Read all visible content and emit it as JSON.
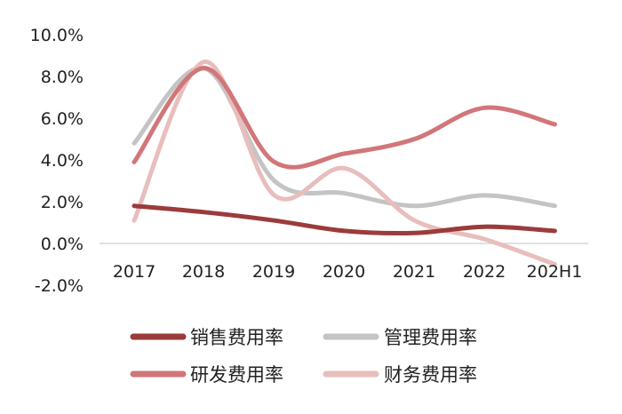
{
  "chart_data": {
    "type": "line",
    "title": "",
    "xlabel": "",
    "ylabel": "",
    "categories": [
      "2017",
      "2018",
      "2019",
      "2020",
      "2021",
      "2022",
      "202H1"
    ],
    "ylim": [
      -2.0,
      10.0
    ],
    "yticks": [
      "10.0%",
      "8.0%",
      "6.0%",
      "4.0%",
      "2.0%",
      "0.0%",
      "-2.0%"
    ],
    "grid": false,
    "legend_position": "bottom",
    "series": [
      {
        "name": "销售费用率",
        "color": "#9b3b3b",
        "values": [
          1.8,
          1.5,
          1.1,
          0.6,
          0.5,
          0.8,
          0.6
        ]
      },
      {
        "name": "管理费用率",
        "color": "#c4c4c4",
        "values": [
          4.8,
          8.4,
          3.0,
          2.4,
          1.8,
          2.3,
          1.8
        ]
      },
      {
        "name": "研发费用率",
        "color": "#d17679",
        "values": [
          3.9,
          8.4,
          3.9,
          4.3,
          5.0,
          6.5,
          5.7
        ]
      },
      {
        "name": "财务费用率",
        "color": "#e8bebd",
        "values": [
          1.1,
          8.7,
          2.3,
          3.6,
          1.1,
          0.2,
          -1.0
        ]
      }
    ]
  }
}
